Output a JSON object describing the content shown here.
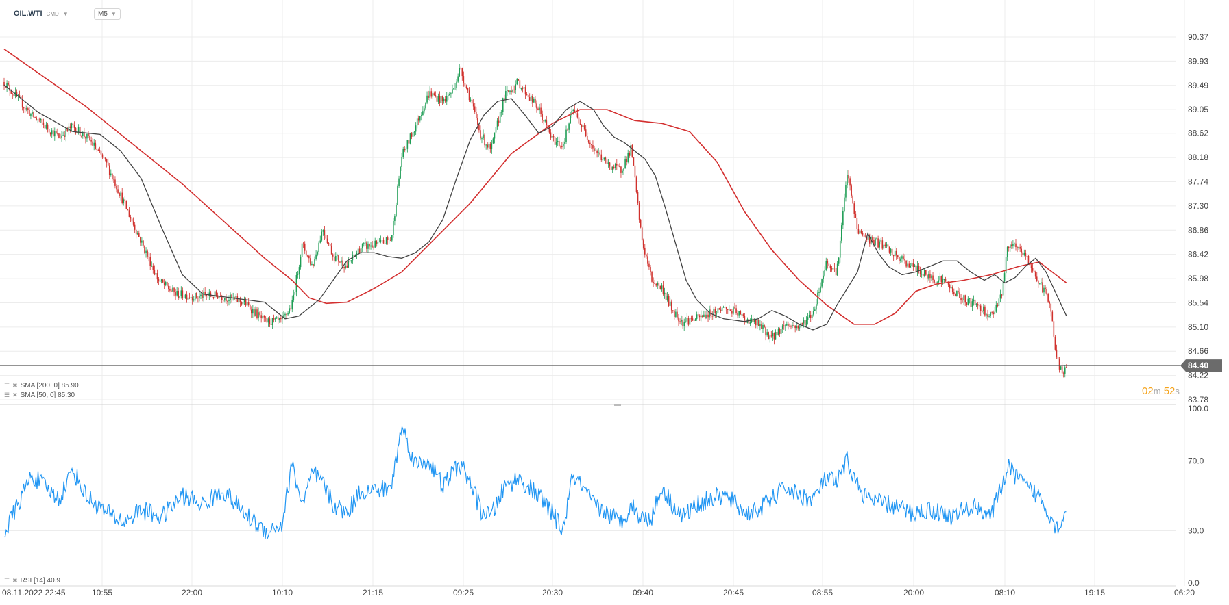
{
  "header": {
    "symbol": "OIL.WTI",
    "category": "CMD",
    "timeframe": "M5"
  },
  "indicators": {
    "sma200": "SMA [200, 0] 85.90",
    "sma50": "SMA [50, 0] 85.30",
    "rsi": "RSI [14] 40.9"
  },
  "countdown": {
    "min": "02",
    "min_unit": "m",
    "sec": "52",
    "sec_unit": "s"
  },
  "colors": {
    "bull": "#1f9d55",
    "bear": "#d0312d",
    "sma200": "#d32f2f",
    "sma50": "#424242",
    "rsi": "#2196f3",
    "grid": "#ececec",
    "price_line": "#555555",
    "price_badge": "#6b6b6b"
  },
  "chart_data": [
    {
      "type": "candlestick",
      "ylim": [
        83.7,
        90.55
      ],
      "yticks": [
        "90.37",
        "89.93",
        "89.49",
        "89.05",
        "88.62",
        "88.18",
        "87.74",
        "87.30",
        "86.86",
        "86.42",
        "85.98",
        "85.54",
        "85.10",
        "84.66",
        "84.22",
        "83.78"
      ],
      "current_price": "84.40",
      "xticks": [
        "08.11.2022 22:45",
        "10:55",
        "22:00",
        "10:10",
        "21:15",
        "09:25",
        "20:30",
        "09:40",
        "20:45",
        "08:55",
        "20:00",
        "08:10",
        "19:15",
        "06:20"
      ],
      "path": [
        [
          0,
          89.55
        ],
        [
          40,
          88.95
        ],
        [
          80,
          88.55
        ],
        [
          100,
          88.75
        ],
        [
          125,
          88.5
        ],
        [
          150,
          88.05
        ],
        [
          175,
          87.35
        ],
        [
          200,
          86.65
        ],
        [
          225,
          85.95
        ],
        [
          250,
          85.7
        ],
        [
          280,
          85.65
        ],
        [
          310,
          85.68
        ],
        [
          350,
          85.55
        ],
        [
          380,
          85.2
        ],
        [
          405,
          85.2
        ],
        [
          420,
          85.5
        ],
        [
          435,
          86.6
        ],
        [
          450,
          86.2
        ],
        [
          465,
          86.9
        ],
        [
          480,
          86.4
        ],
        [
          500,
          86.2
        ],
        [
          520,
          86.55
        ],
        [
          545,
          86.6
        ],
        [
          565,
          86.7
        ],
        [
          580,
          88.2
        ],
        [
          600,
          88.75
        ],
        [
          620,
          89.35
        ],
        [
          640,
          89.2
        ],
        [
          655,
          89.4
        ],
        [
          665,
          89.8
        ],
        [
          680,
          89.25
        ],
        [
          695,
          88.6
        ],
        [
          710,
          88.3
        ],
        [
          730,
          89.3
        ],
        [
          750,
          89.55
        ],
        [
          780,
          89.05
        ],
        [
          800,
          88.5
        ],
        [
          815,
          88.4
        ],
        [
          830,
          89.05
        ],
        [
          860,
          88.35
        ],
        [
          880,
          88.05
        ],
        [
          900,
          87.95
        ],
        [
          915,
          88.35
        ],
        [
          930,
          86.7
        ],
        [
          945,
          85.95
        ],
        [
          960,
          85.8
        ],
        [
          975,
          85.4
        ],
        [
          990,
          85.2
        ],
        [
          1010,
          85.25
        ],
        [
          1030,
          85.35
        ],
        [
          1050,
          85.45
        ],
        [
          1070,
          85.35
        ],
        [
          1080,
          85.25
        ],
        [
          1100,
          85.15
        ],
        [
          1120,
          84.9
        ],
        [
          1140,
          85.15
        ],
        [
          1160,
          85.1
        ],
        [
          1180,
          85.35
        ],
        [
          1200,
          86.3
        ],
        [
          1215,
          86.1
        ],
        [
          1230,
          87.9
        ],
        [
          1245,
          86.85
        ],
        [
          1260,
          86.7
        ],
        [
          1280,
          86.6
        ],
        [
          1300,
          86.4
        ],
        [
          1325,
          86.2
        ],
        [
          1350,
          86.0
        ],
        [
          1370,
          85.95
        ],
        [
          1385,
          85.75
        ],
        [
          1400,
          85.6
        ],
        [
          1420,
          85.5
        ],
        [
          1440,
          85.3
        ],
        [
          1455,
          85.7
        ],
        [
          1465,
          86.6
        ],
        [
          1480,
          86.5
        ],
        [
          1490,
          86.4
        ],
        [
          1510,
          85.9
        ],
        [
          1525,
          85.6
        ],
        [
          1535,
          84.55
        ],
        [
          1545,
          84.2
        ],
        [
          1550,
          84.4
        ]
      ],
      "sma200": [
        [
          0,
          90.15
        ],
        [
          120,
          89.1
        ],
        [
          260,
          87.7
        ],
        [
          380,
          86.35
        ],
        [
          420,
          85.95
        ],
        [
          445,
          85.63
        ],
        [
          470,
          85.53
        ],
        [
          500,
          85.55
        ],
        [
          540,
          85.8
        ],
        [
          580,
          86.1
        ],
        [
          620,
          86.6
        ],
        [
          680,
          87.35
        ],
        [
          740,
          88.25
        ],
        [
          800,
          88.8
        ],
        [
          840,
          89.05
        ],
        [
          880,
          89.05
        ],
        [
          920,
          88.85
        ],
        [
          960,
          88.8
        ],
        [
          1000,
          88.65
        ],
        [
          1040,
          88.1
        ],
        [
          1080,
          87.2
        ],
        [
          1120,
          86.5
        ],
        [
          1160,
          85.95
        ],
        [
          1200,
          85.5
        ],
        [
          1240,
          85.15
        ],
        [
          1270,
          85.15
        ],
        [
          1300,
          85.35
        ],
        [
          1330,
          85.75
        ],
        [
          1360,
          85.88
        ],
        [
          1400,
          85.95
        ],
        [
          1440,
          86.05
        ],
        [
          1480,
          86.2
        ],
        [
          1510,
          86.28
        ],
        [
          1550,
          85.9
        ]
      ],
      "sma50": [
        [
          0,
          89.5
        ],
        [
          50,
          89.0
        ],
        [
          100,
          88.65
        ],
        [
          140,
          88.6
        ],
        [
          170,
          88.3
        ],
        [
          200,
          87.8
        ],
        [
          230,
          86.9
        ],
        [
          260,
          86.05
        ],
        [
          290,
          85.7
        ],
        [
          320,
          85.65
        ],
        [
          350,
          85.6
        ],
        [
          380,
          85.55
        ],
        [
          410,
          85.25
        ],
        [
          430,
          85.3
        ],
        [
          460,
          85.6
        ],
        [
          480,
          85.95
        ],
        [
          500,
          86.3
        ],
        [
          520,
          86.45
        ],
        [
          540,
          86.45
        ],
        [
          560,
          86.38
        ],
        [
          580,
          86.35
        ],
        [
          600,
          86.45
        ],
        [
          620,
          86.65
        ],
        [
          640,
          87.05
        ],
        [
          660,
          87.8
        ],
        [
          680,
          88.5
        ],
        [
          700,
          88.95
        ],
        [
          720,
          89.2
        ],
        [
          740,
          89.25
        ],
        [
          760,
          88.95
        ],
        [
          780,
          88.62
        ],
        [
          800,
          88.75
        ],
        [
          820,
          89.05
        ],
        [
          840,
          89.2
        ],
        [
          860,
          89.05
        ],
        [
          875,
          88.75
        ],
        [
          890,
          88.55
        ],
        [
          905,
          88.45
        ],
        [
          920,
          88.3
        ],
        [
          935,
          88.15
        ],
        [
          950,
          87.85
        ],
        [
          965,
          87.25
        ],
        [
          980,
          86.6
        ],
        [
          995,
          85.95
        ],
        [
          1010,
          85.6
        ],
        [
          1030,
          85.35
        ],
        [
          1050,
          85.25
        ],
        [
          1080,
          85.2
        ],
        [
          1100,
          85.25
        ],
        [
          1120,
          85.4
        ],
        [
          1140,
          85.3
        ],
        [
          1160,
          85.15
        ],
        [
          1180,
          85.05
        ],
        [
          1200,
          85.15
        ],
        [
          1215,
          85.5
        ],
        [
          1230,
          85.8
        ],
        [
          1245,
          86.1
        ],
        [
          1260,
          86.8
        ],
        [
          1275,
          86.45
        ],
        [
          1290,
          86.2
        ],
        [
          1310,
          86.05
        ],
        [
          1330,
          86.1
        ],
        [
          1350,
          86.2
        ],
        [
          1370,
          86.3
        ],
        [
          1390,
          86.3
        ],
        [
          1410,
          86.1
        ],
        [
          1430,
          85.95
        ],
        [
          1445,
          86.05
        ],
        [
          1460,
          85.9
        ],
        [
          1475,
          86.0
        ],
        [
          1490,
          86.2
        ],
        [
          1505,
          86.35
        ],
        [
          1520,
          86.1
        ],
        [
          1535,
          85.7
        ],
        [
          1550,
          85.3
        ]
      ]
    },
    {
      "type": "line",
      "name": "RSI [14]",
      "ylim": [
        0,
        100
      ],
      "yticks": [
        "100.0",
        "70.0",
        "30.0",
        "0.0"
      ],
      "ytick_values": [
        100,
        70,
        30,
        0
      ],
      "anchors": [
        [
          0,
          28
        ],
        [
          40,
          62
        ],
        [
          80,
          48
        ],
        [
          100,
          65
        ],
        [
          120,
          50
        ],
        [
          150,
          40
        ],
        [
          175,
          35
        ],
        [
          200,
          42
        ],
        [
          230,
          38
        ],
        [
          260,
          50
        ],
        [
          290,
          45
        ],
        [
          320,
          53
        ],
        [
          350,
          40
        ],
        [
          380,
          30
        ],
        [
          405,
          33
        ],
        [
          420,
          68
        ],
        [
          435,
          45
        ],
        [
          450,
          63
        ],
        [
          465,
          57
        ],
        [
          480,
          45
        ],
        [
          500,
          40
        ],
        [
          520,
          53
        ],
        [
          545,
          53
        ],
        [
          565,
          55
        ],
        [
          580,
          90
        ],
        [
          600,
          68
        ],
        [
          620,
          70
        ],
        [
          640,
          55
        ],
        [
          655,
          64
        ],
        [
          665,
          68
        ],
        [
          680,
          58
        ],
        [
          695,
          42
        ],
        [
          710,
          38
        ],
        [
          730,
          55
        ],
        [
          750,
          60
        ],
        [
          780,
          50
        ],
        [
          800,
          40
        ],
        [
          815,
          30
        ],
        [
          830,
          62
        ],
        [
          860,
          45
        ],
        [
          880,
          40
        ],
        [
          900,
          35
        ],
        [
          915,
          45
        ],
        [
          930,
          37
        ],
        [
          945,
          38
        ],
        [
          960,
          55
        ],
        [
          975,
          45
        ],
        [
          990,
          38
        ],
        [
          1010,
          45
        ],
        [
          1030,
          48
        ],
        [
          1050,
          50
        ],
        [
          1070,
          45
        ],
        [
          1080,
          40
        ],
        [
          1100,
          42
        ],
        [
          1120,
          48
        ],
        [
          1140,
          55
        ],
        [
          1160,
          50
        ],
        [
          1180,
          48
        ],
        [
          1200,
          60
        ],
        [
          1215,
          57
        ],
        [
          1230,
          70
        ],
        [
          1245,
          56
        ],
        [
          1260,
          48
        ],
        [
          1280,
          46
        ],
        [
          1300,
          44
        ],
        [
          1325,
          40
        ],
        [
          1350,
          42
        ],
        [
          1370,
          40
        ],
        [
          1385,
          38
        ],
        [
          1400,
          42
        ],
        [
          1420,
          44
        ],
        [
          1440,
          38
        ],
        [
          1455,
          56
        ],
        [
          1465,
          66
        ],
        [
          1480,
          60
        ],
        [
          1490,
          55
        ],
        [
          1510,
          50
        ],
        [
          1525,
          40
        ],
        [
          1535,
          32
        ],
        [
          1545,
          36
        ],
        [
          1550,
          41
        ]
      ],
      "last_value": 40.9
    }
  ]
}
